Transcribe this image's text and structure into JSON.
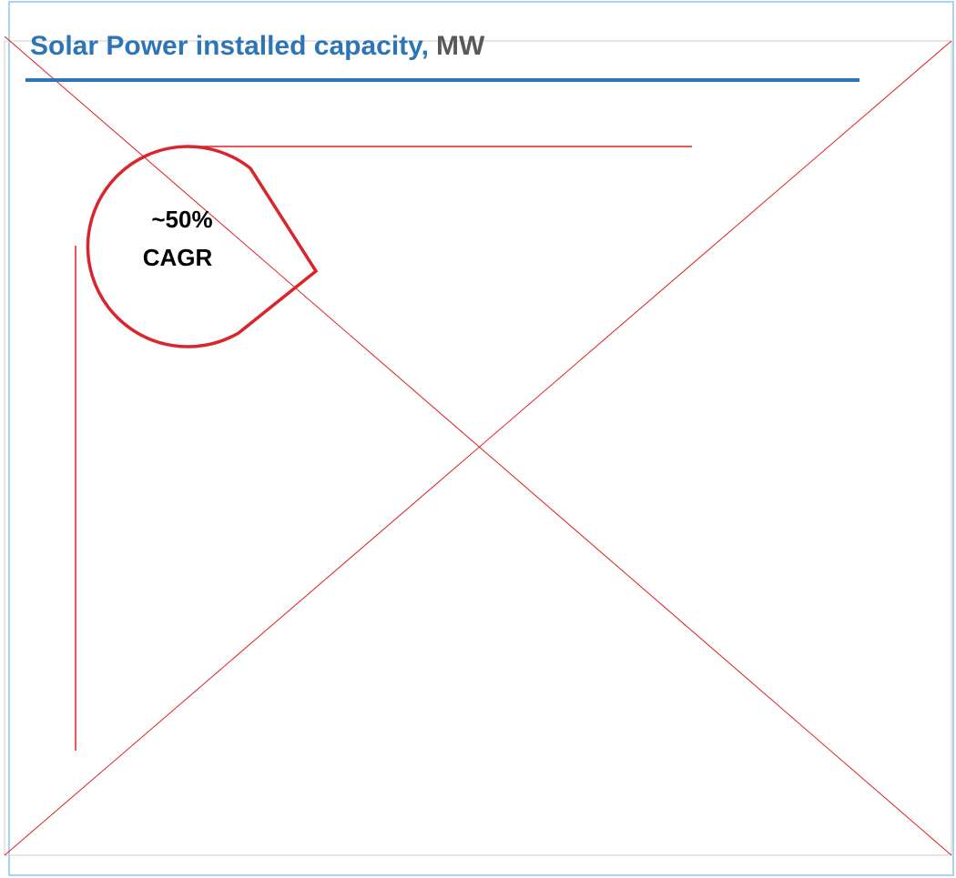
{
  "header": {
    "title": "Solar Power installed capacity,",
    "unit": "MW"
  },
  "callout": {
    "value": "~50%",
    "label": "CAGR"
  }
}
